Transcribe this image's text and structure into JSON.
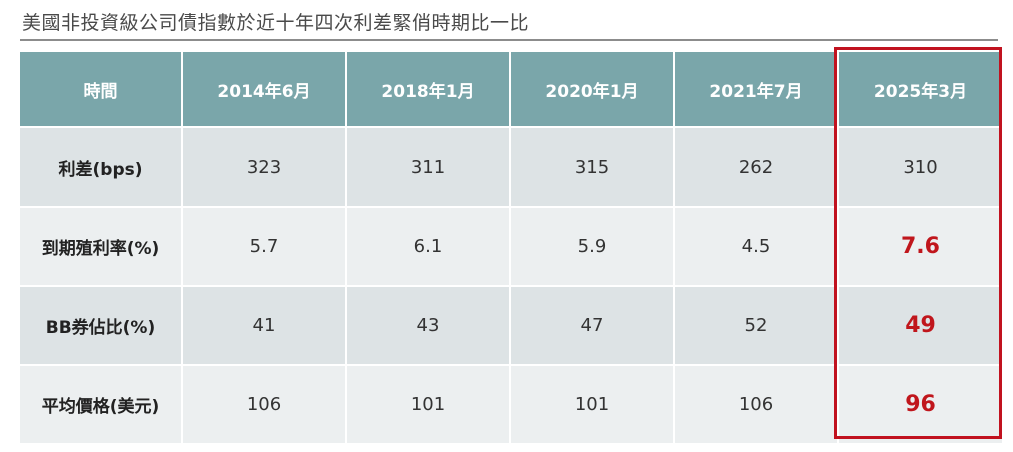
{
  "title": "美國非投資級公司債指數於近十年四次利差緊俏時期比一比",
  "table": {
    "header": [
      "時間",
      "2014年6月",
      "2018年1月",
      "2020年1月",
      "2021年7月",
      "2025年3月"
    ],
    "rows": [
      {
        "label": "利差(bps)",
        "values": [
          "323",
          "311",
          "315",
          "262",
          "310"
        ]
      },
      {
        "label": "到期殖利率(%)",
        "values": [
          "5.7",
          "6.1",
          "5.9",
          "4.5",
          "7.6"
        ]
      },
      {
        "label": "BB券佔比(%)",
        "values": [
          "41",
          "43",
          "47",
          "52",
          "49"
        ]
      },
      {
        "label": "平均價格(美元)",
        "values": [
          "106",
          "101",
          "101",
          "106",
          "96"
        ]
      }
    ]
  },
  "colors": {
    "header_bg": "#7aa6aa",
    "row_dark": "#dde3e5",
    "row_light": "#eceff0",
    "highlight": "#c1121f"
  }
}
